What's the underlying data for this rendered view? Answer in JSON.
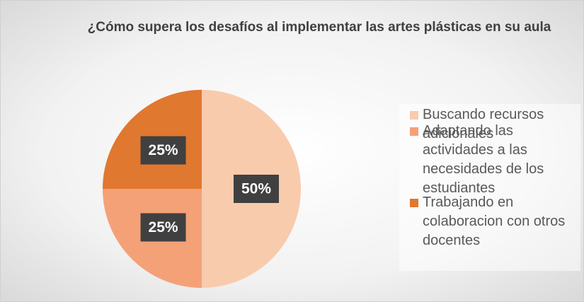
{
  "chart_data": {
    "type": "pie",
    "title": "¿Cómo supera los desafíos al implementar las artes plásticas en su aula",
    "categories": [
      "Buscando recursos adicionales",
      "Adaptando las actividades a las necesidades de los estudiantes",
      "Trabajando en colaboracion con otros docentes"
    ],
    "values": [
      50,
      25,
      25
    ],
    "value_labels": [
      "50%",
      "25%",
      "25%"
    ],
    "colors": [
      "#f8cbad",
      "#f4a178",
      "#e0782f"
    ],
    "legend": "right"
  }
}
